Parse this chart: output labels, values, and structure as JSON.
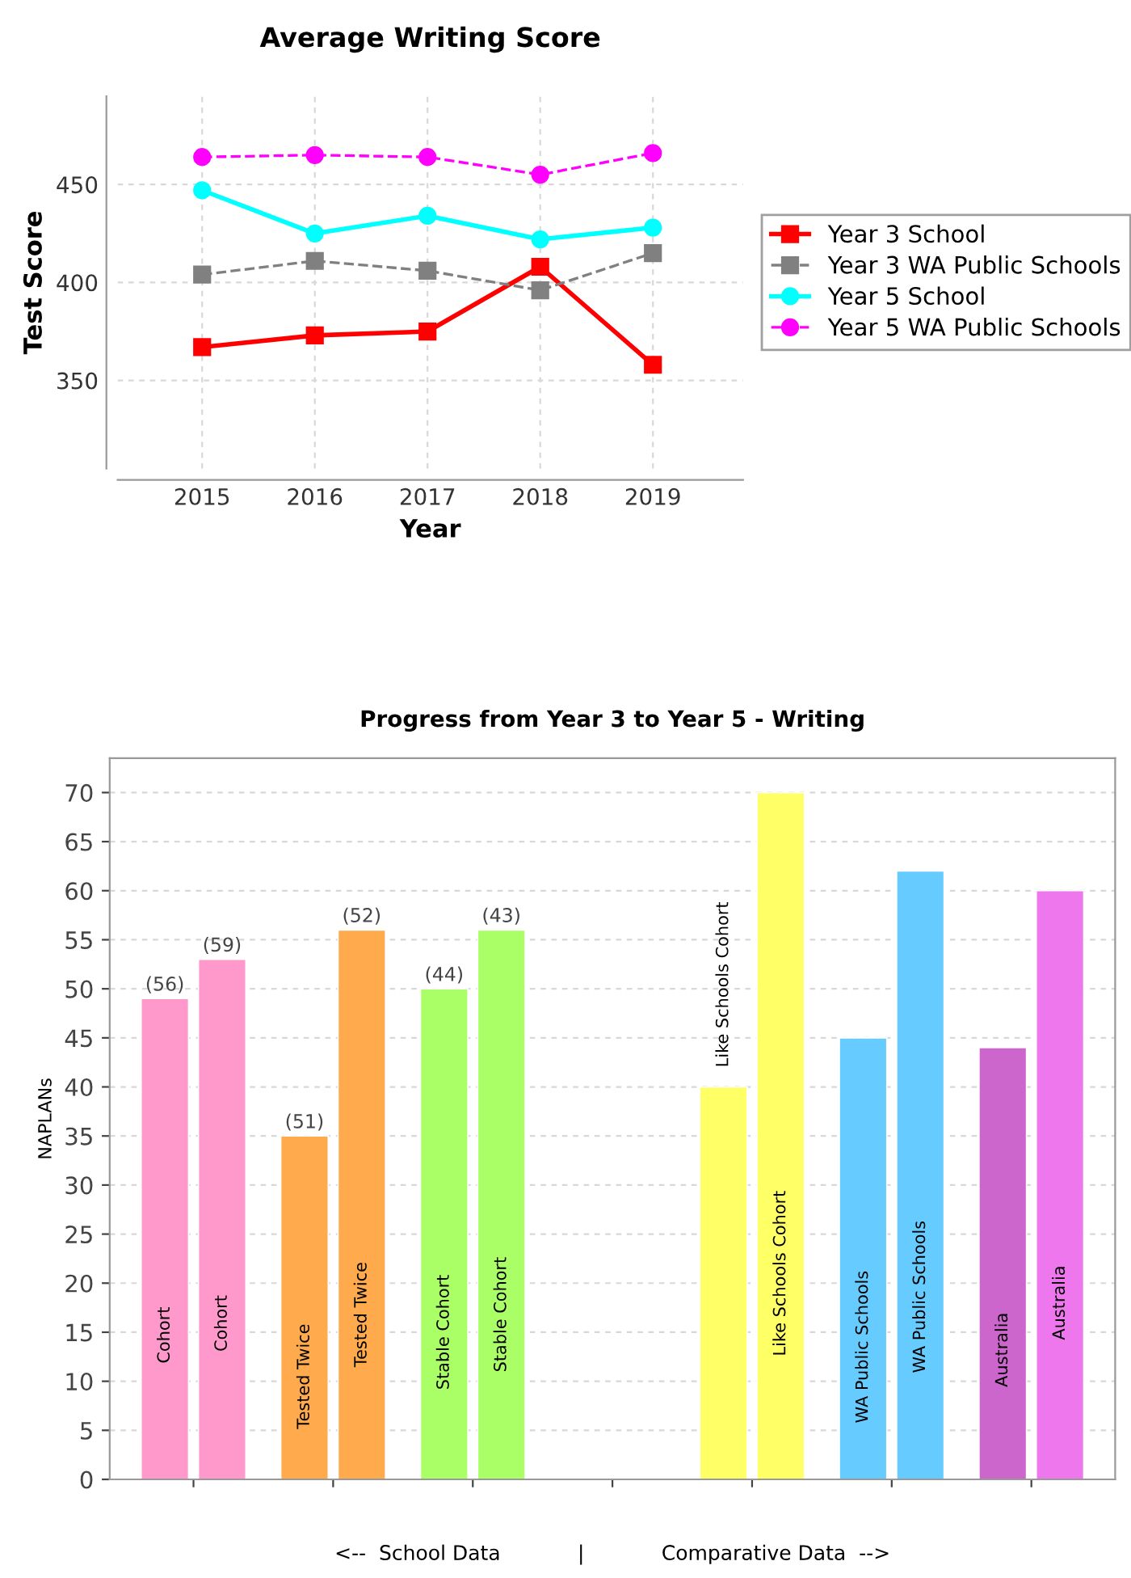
{
  "chart_data": [
    {
      "type": "line",
      "title": "Average Writing Score",
      "xlabel": "Year",
      "ylabel": "Test Score",
      "x": [
        2015,
        2016,
        2017,
        2018,
        2019
      ],
      "series": [
        {
          "name": "Year 3 School",
          "color": "#ff0000",
          "marker": "square",
          "line_style": "solid",
          "values": [
            367,
            373,
            375,
            408,
            358
          ]
        },
        {
          "name": "Year 3 WA Public Schools",
          "color": "#808080",
          "marker": "square",
          "line_style": "dashed",
          "values": [
            404,
            411,
            406,
            396,
            415
          ]
        },
        {
          "name": "Year 5 School",
          "color": "#00ffff",
          "marker": "circle",
          "line_style": "solid",
          "values": [
            447,
            425,
            434,
            422,
            428
          ]
        },
        {
          "name": "Year 5 WA Public Schools",
          "color": "#ff00ff",
          "marker": "circle",
          "line_style": "dashed",
          "values": [
            464,
            465,
            464,
            455,
            466
          ]
        }
      ],
      "xlim": [
        2014.25,
        2019.8
      ],
      "xticks": [
        2015,
        2016,
        2017,
        2018,
        2019
      ],
      "ylim": [
        305,
        495
      ],
      "yticks": [
        350,
        400,
        450
      ],
      "grid": true,
      "legend": "right"
    },
    {
      "type": "bar",
      "title": "Progress from Year 3 to Year 5 - Writing",
      "ylabel": "NAPLANs",
      "xlabel": "<--  School Data            |            Comparative Data  -->",
      "categories": [
        "Cohort",
        "Tested Twice",
        "Stable Cohort",
        null,
        "Like Schools Cohort",
        "WA Public Schools",
        "Australia"
      ],
      "series": [
        {
          "colors": [
            "#ff99cc",
            "#ffaa4d",
            "#aaff66",
            "#ffffff",
            "#ffff66",
            "#66ccff",
            "#cc66cc"
          ],
          "values": [
            49,
            35,
            50,
            null,
            40,
            45,
            44
          ]
        },
        {
          "colors": [
            "#ff99cc",
            "#ffaa4d",
            "#aaff66",
            "#ffffff",
            "#ffff66",
            "#66ccff",
            "#ee77ee"
          ],
          "values": [
            53,
            56,
            56,
            null,
            70,
            62,
            60
          ]
        }
      ],
      "annotations": [
        "(56)",
        "(59)",
        "(51)",
        "(52)",
        "(44)",
        "(43)"
      ],
      "ylim": [
        0,
        73.5
      ],
      "yticks": [
        0,
        5,
        10,
        15,
        20,
        25,
        30,
        35,
        40,
        45,
        50,
        55,
        60,
        65,
        70
      ],
      "grid": "y"
    }
  ]
}
